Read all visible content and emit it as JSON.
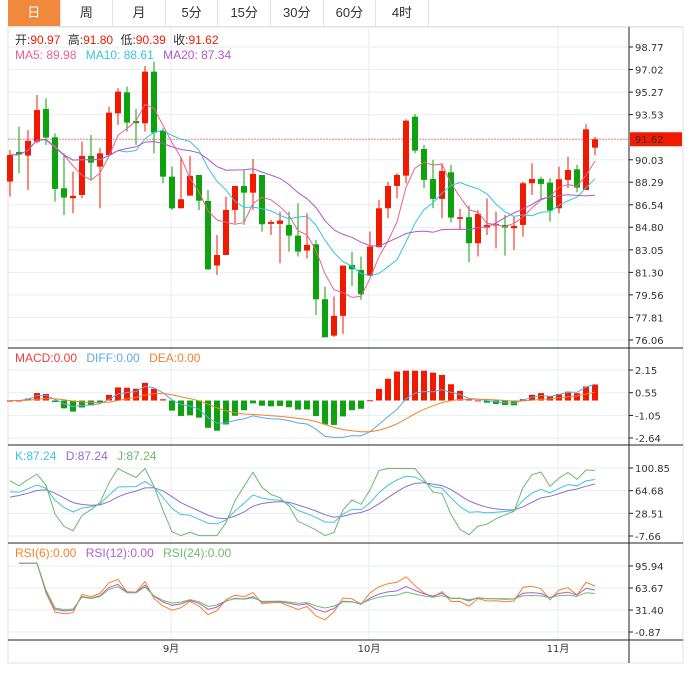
{
  "tabs": [
    {
      "label": "日",
      "active": true
    },
    {
      "label": "周"
    },
    {
      "label": "月"
    },
    {
      "label": "5分"
    },
    {
      "label": "15分"
    },
    {
      "label": "30分"
    },
    {
      "label": "60分"
    },
    {
      "label": "4时"
    }
  ],
  "ohlc_legend": {
    "open_label": "开:",
    "open": "90.97",
    "high_label": "高:",
    "high": "91.80",
    "low_label": "低:",
    "low": "90.39",
    "close_label": "收:",
    "close": "91.62"
  },
  "ma_legend": {
    "ma5": "MA5: 89.98",
    "ma10": "MA10: 88.61",
    "ma20": "MA20: 87.34"
  },
  "macd_legend": {
    "macd": "MACD:0.00",
    "diff": "DIFF:0.00",
    "dea": "DEA:0.00"
  },
  "kdj_legend": {
    "k": "K:87.24",
    "d": "D:87.24",
    "j": "J:87.24"
  },
  "rsi_legend": {
    "rsi6": "RSI(6):0.00",
    "rsi12": "RSI(12):0.00",
    "rsi24": "RSI(24):0.00"
  },
  "colors": {
    "up": "#f01a00",
    "down": "#0ea20e",
    "ma5": "#ee5f8f",
    "ma10": "#33c5de",
    "ma20": "#b057c9",
    "tab_active": "#f0883e",
    "macd": "#ee3b3b",
    "diff": "#5aa8e8",
    "dea": "#f5822a",
    "k": "#3ec6d8",
    "d": "#8e6fcf",
    "j": "#6cb86c",
    "rsi6": "#f5822a",
    "rsi12": "#b05ec9",
    "rsi24": "#6dbd6d"
  },
  "chart_data": {
    "type": "candlestick",
    "price_ticks": [
      "98.77",
      "97.02",
      "95.27",
      "93.53",
      "91.62",
      "90.03",
      "88.29",
      "86.54",
      "84.80",
      "83.05",
      "81.30",
      "79.56",
      "77.81",
      "76.06"
    ],
    "price_range": [
      76.06,
      98.77
    ],
    "current_price": "91.62",
    "macd_ticks": [
      "2.15",
      "0.55",
      "-1.05",
      "-2.64"
    ],
    "kdj_ticks": [
      "100.85",
      "64.68",
      "28.51",
      "-7.66"
    ],
    "rsi_ticks": [
      "95.94",
      "63.67",
      "31.40",
      "-0.87"
    ],
    "x_labels": [
      {
        "label": "9月",
        "index": 18
      },
      {
        "label": "10月",
        "index": 40
      },
      {
        "label": "11月",
        "index": 61
      }
    ],
    "candles": [
      [
        88.34,
        90.4,
        90.79,
        87.17
      ],
      [
        90.64,
        90.43,
        92.6,
        88.98
      ],
      [
        90.35,
        91.49,
        92.34,
        87.69
      ],
      [
        91.44,
        93.89,
        95.05,
        91.31
      ],
      [
        93.97,
        91.75,
        94.8,
        91.18
      ],
      [
        91.77,
        87.77,
        92.08,
        86.79
      ],
      [
        87.82,
        87.1,
        90.53,
        85.75
      ],
      [
        87.05,
        87.23,
        89.11,
        85.88
      ],
      [
        87.3,
        90.33,
        91.44,
        87.05
      ],
      [
        90.33,
        89.81,
        91.95,
        88.47
      ],
      [
        89.5,
        90.53,
        90.92,
        86.27
      ],
      [
        90.4,
        93.68,
        94.15,
        90.27
      ],
      [
        93.63,
        95.31,
        95.57,
        92.73
      ],
      [
        95.26,
        92.91,
        95.7,
        92.21
      ],
      [
        93.04,
        92.86,
        93.97,
        91.18
      ],
      [
        92.86,
        96.86,
        97.3,
        92.21
      ],
      [
        96.86,
        92.13,
        97.64,
        90.53
      ],
      [
        92.29,
        88.72,
        92.47,
        88.21
      ],
      [
        88.72,
        86.27,
        89.5,
        86.14
      ],
      [
        86.27,
        86.97,
        90.27,
        86.27
      ],
      [
        87.25,
        88.78,
        90.33,
        87.25
      ],
      [
        88.85,
        86.86,
        88.85,
        86.14
      ],
      [
        86.84,
        81.54,
        87.69,
        81.49
      ],
      [
        81.83,
        82.65,
        84.2,
        81.1
      ],
      [
        82.65,
        86.14,
        87.17,
        82.65
      ],
      [
        86.14,
        88.0,
        88.0,
        85.11
      ],
      [
        88.0,
        87.48,
        89.24,
        84.98
      ],
      [
        87.48,
        88.93,
        90.09,
        86.14
      ],
      [
        88.85,
        85.03,
        88.85,
        84.46
      ],
      [
        85.06,
        85.21,
        85.37,
        84.2
      ],
      [
        85.06,
        85.32,
        86.01,
        82.01
      ],
      [
        84.98,
        84.15,
        86.01,
        82.91
      ],
      [
        84.15,
        82.91,
        86.66,
        82.53
      ],
      [
        82.99,
        83.43,
        85.88,
        82.4
      ],
      [
        83.48,
        79.22,
        83.82,
        78.0
      ],
      [
        79.22,
        76.27,
        80.2,
        76.27
      ],
      [
        76.4,
        77.93,
        79.43,
        76.3
      ],
      [
        77.93,
        81.83,
        81.83,
        76.53
      ],
      [
        81.88,
        81.54,
        82.91,
        80.25
      ],
      [
        81.49,
        79.61,
        82.53,
        79.17
      ],
      [
        81.05,
        83.3,
        84.46,
        81.05
      ],
      [
        83.25,
        86.27,
        86.92,
        83.25
      ],
      [
        86.27,
        88.0,
        88.34,
        85.5
      ],
      [
        88.0,
        88.85,
        88.98,
        87.05
      ],
      [
        88.8,
        93.06,
        93.17,
        88.21
      ],
      [
        93.37,
        90.74,
        93.58,
        90.53
      ],
      [
        90.87,
        88.47,
        91.18,
        87.82
      ],
      [
        88.54,
        87.0,
        90.02,
        86.27
      ],
      [
        87.0,
        89.16,
        89.76,
        85.5
      ],
      [
        89.06,
        85.55,
        89.63,
        85.16
      ],
      [
        85.45,
        85.58,
        86.22,
        84.59
      ],
      [
        85.58,
        83.56,
        86.48,
        82.09
      ],
      [
        83.56,
        85.83,
        86.14,
        82.53
      ],
      [
        84.77,
        84.98,
        87.04,
        84.2
      ],
      [
        84.93,
        85.06,
        86.01,
        83.17
      ],
      [
        84.98,
        84.77,
        85.75,
        82.6
      ],
      [
        84.72,
        84.9,
        85.62,
        83.04
      ],
      [
        84.98,
        88.21,
        88.34,
        84.07
      ],
      [
        88.21,
        88.54,
        89.76,
        87.3
      ],
      [
        88.54,
        88.16,
        88.72,
        87.04
      ],
      [
        88.26,
        86.09,
        88.6,
        85.24
      ],
      [
        86.27,
        88.52,
        89.5,
        85.88
      ],
      [
        88.47,
        89.24,
        90.27,
        87.82
      ],
      [
        89.29,
        87.87,
        89.63,
        87.51
      ],
      [
        87.69,
        92.39,
        92.78,
        87.69
      ],
      [
        90.97,
        91.62,
        91.8,
        90.39
      ]
    ]
  }
}
